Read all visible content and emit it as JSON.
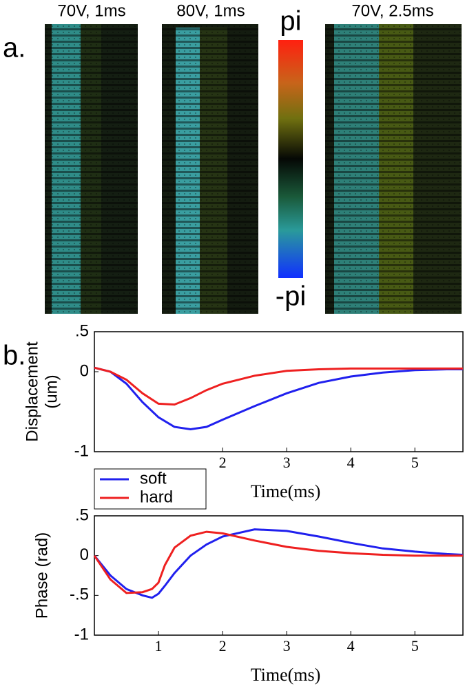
{
  "panel_a": {
    "label": "a.",
    "images": [
      {
        "title": "70V, 1ms"
      },
      {
        "title": "80V, 1ms"
      },
      {
        "title": "70V, 2.5ms"
      }
    ],
    "colorbar": {
      "max_label": "pi",
      "min_label": "-pi"
    }
  },
  "panel_b": {
    "label": "b."
  },
  "chart_data": [
    {
      "type": "line",
      "ylabel": [
        "Displacement",
        "(um)"
      ],
      "xlabel": "Time(ms)",
      "x": [
        0,
        0.25,
        0.5,
        0.75,
        1,
        1.25,
        1.5,
        1.75,
        2,
        2.5,
        3,
        3.5,
        4,
        4.5,
        5,
        5.5,
        5.75
      ],
      "series": [
        {
          "name": "soft",
          "color": "#2020ee",
          "values": [
            0.05,
            0.0,
            -0.15,
            -0.38,
            -0.57,
            -0.69,
            -0.72,
            -0.69,
            -0.6,
            -0.43,
            -0.27,
            -0.14,
            -0.06,
            -0.01,
            0.02,
            0.03,
            0.03
          ]
        },
        {
          "name": "hard",
          "color": "#ee2020",
          "values": [
            0.05,
            0.0,
            -0.1,
            -0.27,
            -0.4,
            -0.41,
            -0.33,
            -0.23,
            -0.15,
            -0.05,
            0.01,
            0.03,
            0.04,
            0.04,
            0.04,
            0.04,
            0.04
          ]
        }
      ],
      "xlim": [
        0,
        5.75
      ],
      "ylim": [
        -1,
        0.5
      ],
      "xticks": [
        2,
        3,
        4,
        5
      ],
      "yticks": [
        {
          "value": 0.5,
          "label": ".5"
        },
        0,
        -1
      ],
      "legend": "below-left"
    },
    {
      "type": "line",
      "ylabel": [
        "Phase (rad)"
      ],
      "xlabel": "Time(ms)",
      "x": [
        0,
        0.25,
        0.5,
        0.75,
        0.9,
        1,
        1.1,
        1.25,
        1.5,
        1.75,
        2,
        2.5,
        3,
        3.5,
        4,
        4.5,
        5,
        5.5,
        5.75
      ],
      "series": [
        {
          "name": "soft",
          "color": "#2020ee",
          "values": [
            0,
            -0.25,
            -0.42,
            -0.5,
            -0.53,
            -0.48,
            -0.38,
            -0.22,
            0.0,
            0.14,
            0.24,
            0.33,
            0.31,
            0.24,
            0.16,
            0.09,
            0.05,
            0.02,
            0.01
          ]
        },
        {
          "name": "hard",
          "color": "#ee2020",
          "values": [
            0,
            -0.3,
            -0.47,
            -0.46,
            -0.42,
            -0.34,
            -0.12,
            0.1,
            0.25,
            0.3,
            0.28,
            0.19,
            0.11,
            0.06,
            0.03,
            0.01,
            0,
            0,
            0
          ]
        }
      ],
      "xlim": [
        0,
        5.75
      ],
      "ylim": [
        -1,
        0.5
      ],
      "xticks": [
        1,
        2,
        3,
        4,
        5
      ],
      "yticks": [
        {
          "value": 0.5,
          "label": ".5"
        },
        0,
        {
          "value": -0.5,
          "label": "-.5"
        },
        -1
      ]
    }
  ]
}
